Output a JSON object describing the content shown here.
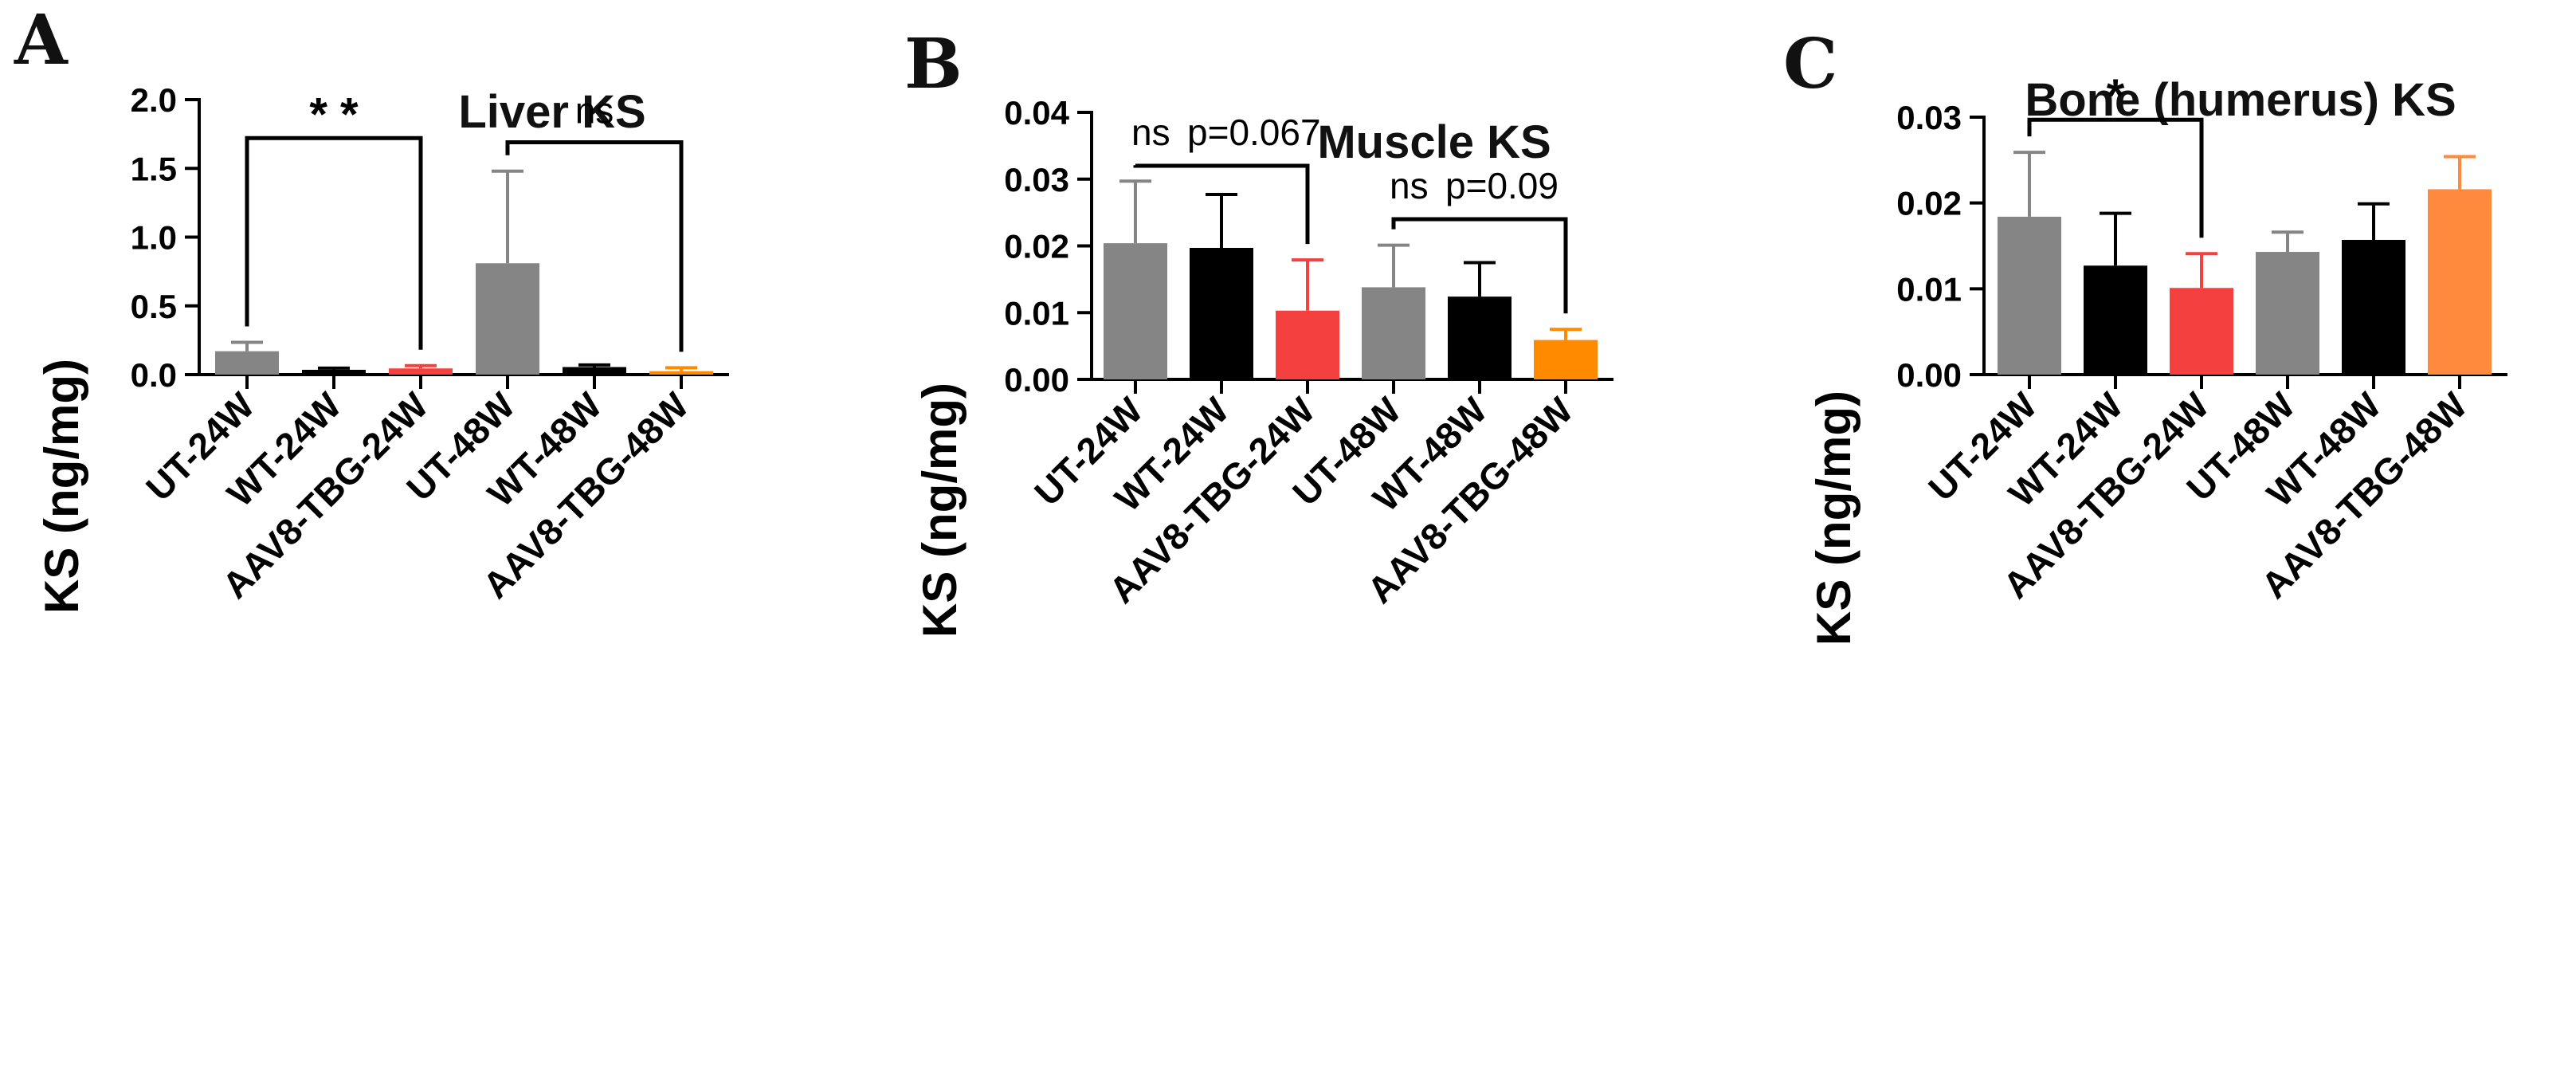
{
  "chart_data": [
    {
      "type": "bar",
      "panel": "A",
      "title": "Liver KS",
      "ylabel": "KS (ng/mg)",
      "xlabel": "",
      "ylim": [
        0,
        2.0
      ],
      "yticks": [
        0.0,
        0.5,
        1.0,
        1.5,
        2.0
      ],
      "ytick_labels": [
        "0.0",
        "0.5",
        "1.0",
        "1.5",
        "2.0"
      ],
      "categories": [
        "UT-24W",
        "WT-24W",
        "AAV8-TBG-24W",
        "UT-48W",
        "WT-48W",
        "AAV8-TBG-48W"
      ],
      "values": [
        0.17,
        0.035,
        0.045,
        0.81,
        0.055,
        0.025
      ],
      "errors": [
        0.065,
        0.012,
        0.02,
        0.67,
        0.015,
        0.025
      ],
      "colors": [
        "#858585",
        "#000000",
        "#f4403f",
        "#858585",
        "#000000",
        "#ff8a00"
      ],
      "comparisons": [
        {
          "from": 0,
          "to": 2,
          "label": "**",
          "note": "",
          "y": 1.72
        },
        {
          "from": 3,
          "to": 5,
          "label": "ns",
          "note": "",
          "y": 1.69
        }
      ]
    },
    {
      "type": "bar",
      "panel": "B",
      "title": "Muscle KS",
      "ylabel": "KS (ng/mg)",
      "xlabel": "",
      "ylim": [
        0,
        0.04
      ],
      "yticks": [
        0.0,
        0.01,
        0.02,
        0.03,
        0.04
      ],
      "ytick_labels": [
        "0.00",
        "0.01",
        "0.02",
        "0.03",
        "0.04"
      ],
      "categories": [
        "UT-24W",
        "WT-24W",
        "AAV8-TBG-24W",
        "UT-48W",
        "WT-48W",
        "AAV8-TBG-48W"
      ],
      "values": [
        0.0204,
        0.0197,
        0.0103,
        0.0138,
        0.0124,
        0.0059
      ],
      "errors": [
        0.0093,
        0.008,
        0.0076,
        0.0063,
        0.0051,
        0.0016
      ],
      "colors": [
        "#858585",
        "#000000",
        "#f4403f",
        "#858585",
        "#000000",
        "#ff8a00"
      ],
      "comparisons": [
        {
          "from": 0,
          "to": 2,
          "label": "ns",
          "note": "p=0.067",
          "y": 0.032
        },
        {
          "from": 3,
          "to": 5,
          "label": "ns",
          "note": "p=0.09",
          "y": 0.024
        }
      ]
    },
    {
      "type": "bar",
      "panel": "C",
      "title": "Bone (humerus) KS",
      "ylabel": "KS (ng/mg)",
      "xlabel": "",
      "ylim": [
        0,
        0.03
      ],
      "yticks": [
        0.0,
        0.01,
        0.02,
        0.03
      ],
      "ytick_labels": [
        "0.00",
        "0.01",
        "0.02",
        "0.03"
      ],
      "categories": [
        "UT-24W",
        "WT-24W",
        "AAV8-TBG-24W",
        "UT-48W",
        "WT-48W",
        "AAV8-TBG-48W"
      ],
      "values": [
        0.0184,
        0.0127,
        0.0101,
        0.0143,
        0.0157,
        0.0216
      ],
      "errors": [
        0.0075,
        0.0061,
        0.004,
        0.0023,
        0.0042,
        0.0038
      ],
      "colors": [
        "#858585",
        "#000000",
        "#f4403f",
        "#858585",
        "#000000",
        "#ff8a3d"
      ],
      "comparisons": [
        {
          "from": 0,
          "to": 2,
          "label": "*",
          "note": "",
          "y": 0.0297
        }
      ]
    }
  ]
}
